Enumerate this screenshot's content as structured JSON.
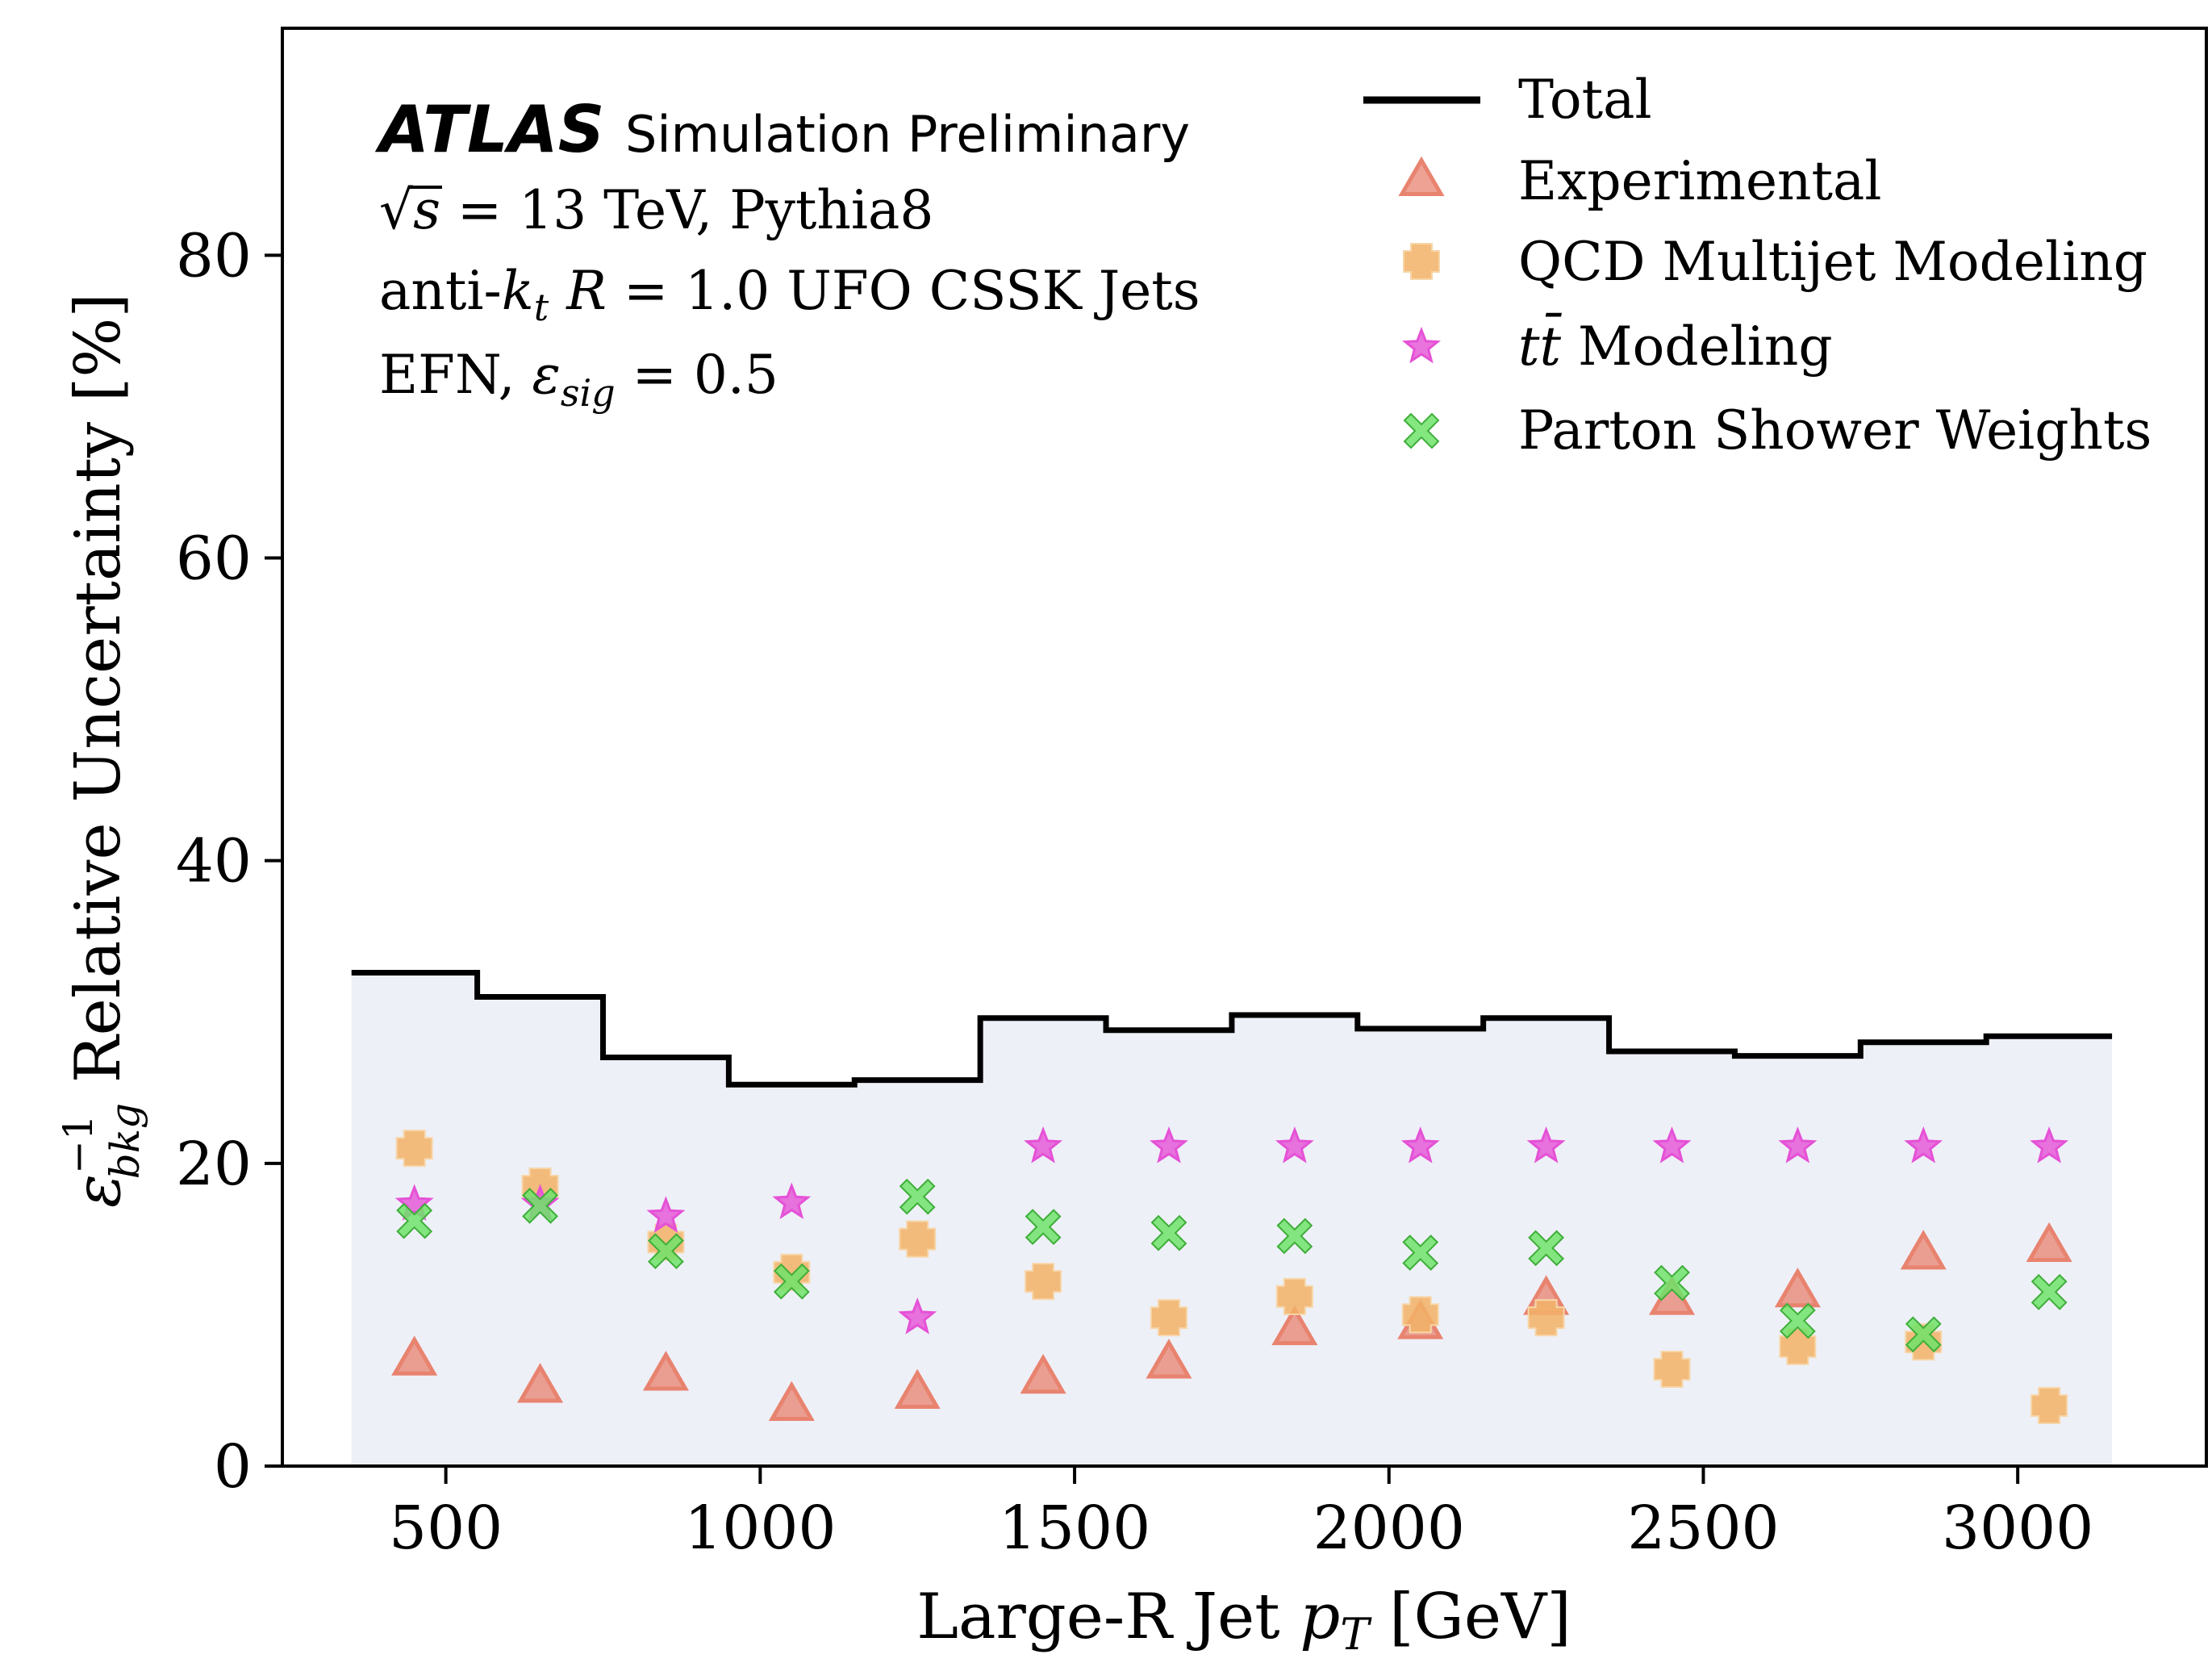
{
  "colors": {
    "total": "#000000",
    "fill": "#eef0f8",
    "experimental": "#e8836f",
    "qcd": "#f2b266",
    "ttbar": "#e551d6",
    "parton": "#6ee36a"
  },
  "chart_data": {
    "type": "scatter",
    "xlabel": {
      "pre": "Large-R Jet ",
      "var": "p",
      "sub": "T",
      "post": " [GeV]"
    },
    "ylabel": {
      "eps": "ε",
      "sup": "−1",
      "sub": "bkg",
      "post": " Relative Uncertainty [%]"
    },
    "xlim": [
      240,
      3300
    ],
    "ylim": [
      0,
      95
    ],
    "xticks": [
      500,
      1000,
      1500,
      2000,
      2500,
      3000
    ],
    "yticks": [
      0,
      20,
      40,
      60,
      80
    ],
    "grid": false,
    "legend_position": "top-right",
    "annotations": {
      "atlas": "ATLAS",
      "atlas_rest": "Simulation Preliminary",
      "line2_pre": "√",
      "line2_s": "s",
      "line2_post": " = 13 TeV, Pythia8",
      "line3_pre": "anti-",
      "line3_k": "k",
      "line3_t": "t",
      "line3_R": "R",
      "line3_post": " = 1.0 UFO CSSK Jets",
      "line4_pre": "EFN, ",
      "line4_eps": "ε",
      "line4_sub": "sig",
      "line4_post": " = 0.5"
    },
    "bin_edges": [
      350,
      550,
      750,
      950,
      1150,
      1350,
      1550,
      1750,
      1950,
      2150,
      2350,
      2550,
      2750,
      2950,
      3150
    ],
    "x": [
      450,
      650,
      850,
      1050,
      1250,
      1450,
      1650,
      1850,
      2050,
      2250,
      2450,
      2650,
      2850,
      3050
    ],
    "series": [
      {
        "name": "Total",
        "key": "total",
        "marker": "step",
        "values": [
          32.6,
          31.0,
          27.0,
          25.2,
          25.5,
          29.6,
          28.8,
          29.8,
          28.9,
          29.6,
          27.4,
          27.1,
          28.0,
          28.4
        ]
      },
      {
        "name": "Experimental",
        "key": "experimental",
        "marker": "triangle",
        "values": [
          7.0,
          5.2,
          6.0,
          4.0,
          4.8,
          5.8,
          6.8,
          9.0,
          9.4,
          11.0,
          11.0,
          11.5,
          14.0,
          14.5
        ]
      },
      {
        "name": "QCD Multijet Modeling",
        "key": "qcd",
        "marker": "plus",
        "values": [
          21.0,
          18.5,
          14.8,
          12.8,
          15.0,
          12.2,
          9.8,
          11.2,
          10.0,
          9.8,
          6.4,
          7.9,
          8.2,
          4.0
        ]
      },
      {
        "name_pre": "",
        "name_tt": "tt̄",
        "name": " Modeling",
        "key": "ttbar",
        "marker": "star",
        "values": [
          17.3,
          17.3,
          16.5,
          17.4,
          9.8,
          21.1,
          21.1,
          21.1,
          21.1,
          21.1,
          21.1,
          21.1,
          21.1,
          21.1
        ]
      },
      {
        "name": "Parton Shower Weights",
        "key": "parton",
        "marker": "x",
        "values": [
          16.2,
          17.2,
          14.2,
          12.2,
          17.8,
          15.8,
          15.4,
          15.2,
          14.1,
          14.4,
          12.1,
          9.6,
          8.7,
          11.5
        ]
      }
    ]
  }
}
